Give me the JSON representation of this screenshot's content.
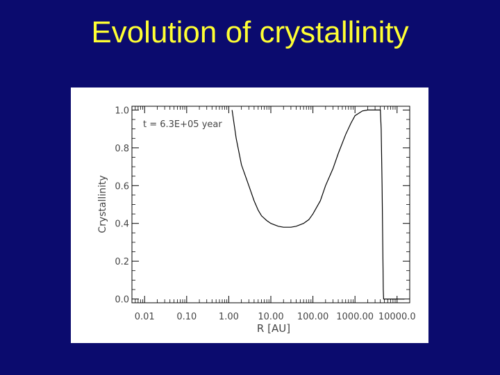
{
  "slide": {
    "title": "Evolution of crystallinity"
  },
  "chart_data": {
    "type": "line",
    "title": "",
    "xlabel": "R [AU]",
    "ylabel": "Crystallinity",
    "xscale": "log",
    "xlim": [
      0.005,
      20000
    ],
    "ylim": [
      -0.02,
      1.02
    ],
    "xticks": [
      "0.01",
      "0.10",
      "1.00",
      "10.00",
      "100.00",
      "1000.00",
      "10000.0"
    ],
    "yticks": [
      "0.0",
      "0.2",
      "0.4",
      "0.6",
      "0.8",
      "1.0"
    ],
    "annotation": "t = 6.3E+05 year",
    "grid": false,
    "series": [
      {
        "x": [
          1.2,
          1.5,
          2.0,
          3.0,
          4.0,
          5.0,
          6.0,
          8.0,
          10.0,
          15.0,
          20.0,
          30.0,
          40.0,
          60.0,
          80.0,
          100.0,
          150.0,
          200.0,
          300.0,
          400.0,
          600.0,
          800.0,
          1000.0,
          1500.0,
          2000.0,
          2500.0,
          3000.0,
          3500.0,
          4000.0,
          4200.0,
          4400.0,
          4600.0,
          4700.0,
          4800.0,
          5000.0,
          15000.0
        ],
        "y": [
          1.0,
          0.85,
          0.71,
          0.6,
          0.52,
          0.47,
          0.44,
          0.415,
          0.4,
          0.385,
          0.38,
          0.38,
          0.385,
          0.4,
          0.42,
          0.45,
          0.52,
          0.6,
          0.69,
          0.77,
          0.87,
          0.93,
          0.97,
          0.995,
          1.0,
          1.0,
          1.0,
          1.0,
          1.0,
          0.9,
          0.6,
          0.25,
          0.05,
          0.0,
          0.0,
          0.0
        ]
      }
    ]
  }
}
